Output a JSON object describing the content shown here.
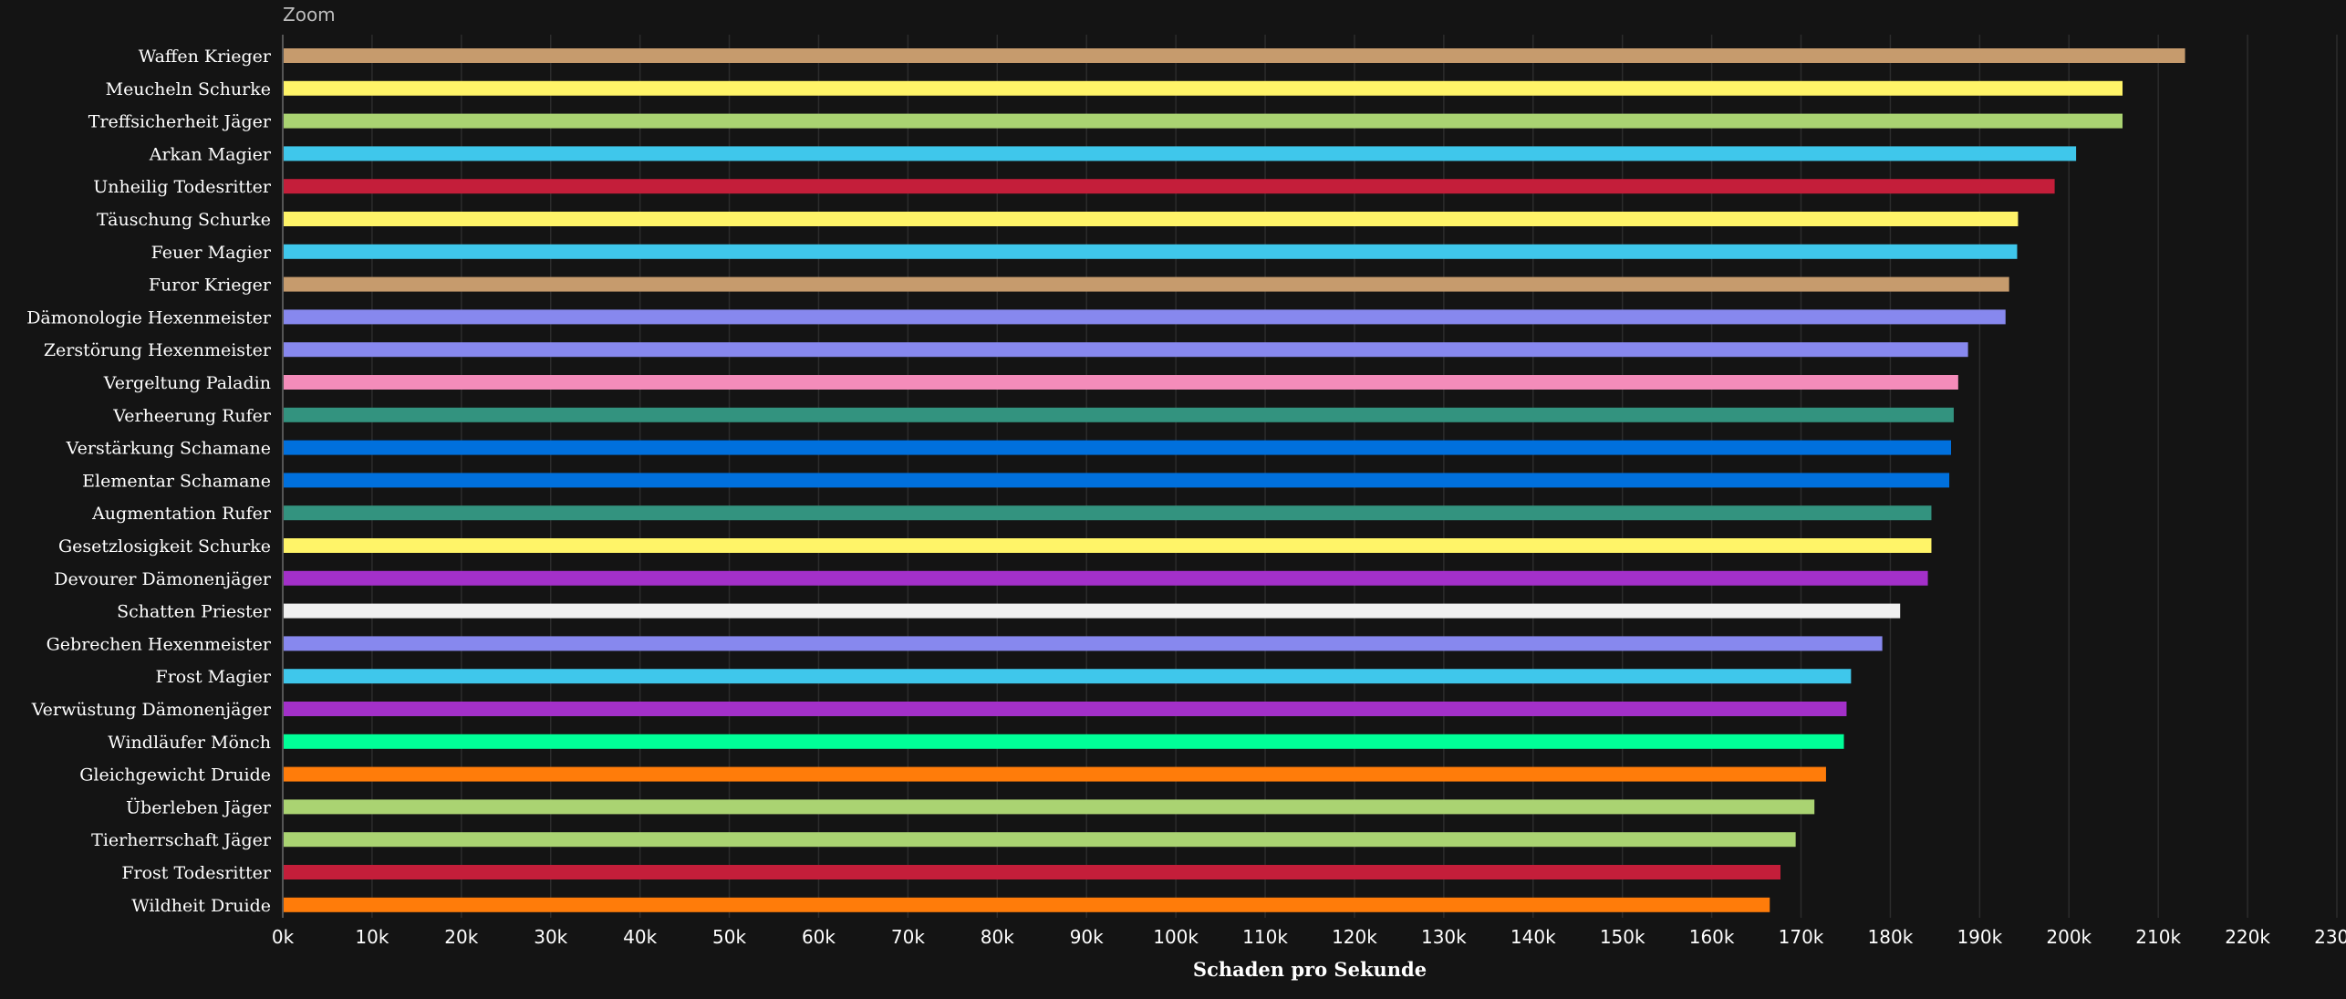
{
  "zoom_label": "Zoom",
  "chart_data": {
    "type": "bar",
    "orientation": "horizontal",
    "xlabel": "Schaden pro Sekunde",
    "xlim": [
      0,
      230000
    ],
    "x_tick_step": 10000,
    "x_tick_labels": [
      "0k",
      "10k",
      "20k",
      "30k",
      "40k",
      "50k",
      "60k",
      "70k",
      "80k",
      "90k",
      "100k",
      "110k",
      "120k",
      "130k",
      "140k",
      "150k",
      "160k",
      "170k",
      "180k",
      "190k",
      "200k",
      "210k",
      "220k",
      "230k"
    ],
    "grid": "vertical",
    "categories": [
      "Waffen Krieger",
      "Meucheln Schurke",
      "Treffsicherheit Jäger",
      "Arkan Magier",
      "Unheilig Todesritter",
      "Täuschung Schurke",
      "Feuer Magier",
      "Furor Krieger",
      "Dämonologie Hexenmeister",
      "Zerstörung Hexenmeister",
      "Vergeltung Paladin",
      "Verheerung Rufer",
      "Verstärkung Schamane",
      "Elementar Schamane",
      "Augmentation Rufer",
      "Gesetzlosigkeit Schurke",
      "Devourer Dämonenjäger",
      "Schatten Priester",
      "Gebrechen Hexenmeister",
      "Frost Magier",
      "Verwüstung Dämonenjäger",
      "Windläufer Mönch",
      "Gleichgewicht Druide",
      "Überleben Jäger",
      "Tierherrschaft Jäger",
      "Frost Todesritter",
      "Wildheit Druide"
    ],
    "values": [
      213000,
      206000,
      206000,
      200800,
      198400,
      194300,
      194200,
      193300,
      192900,
      188700,
      187600,
      187100,
      186800,
      186600,
      184600,
      184600,
      184200,
      181100,
      179100,
      175600,
      175100,
      174800,
      172800,
      171500,
      169400,
      167700,
      166500
    ],
    "colors": [
      "#C69B6D",
      "#FFF468",
      "#AAD372",
      "#3FC7EB",
      "#C41E3A",
      "#FFF468",
      "#3FC7EB",
      "#C69B6D",
      "#8788EE",
      "#8788EE",
      "#F48CBA",
      "#33937F",
      "#0070DD",
      "#0070DD",
      "#33937F",
      "#FFF468",
      "#A330C9",
      "#F0F0F0",
      "#8788EE",
      "#3FC7EB",
      "#A330C9",
      "#00FF98",
      "#FF7C0A",
      "#AAD372",
      "#AAD372",
      "#C41E3A",
      "#FF7C0A"
    ]
  }
}
